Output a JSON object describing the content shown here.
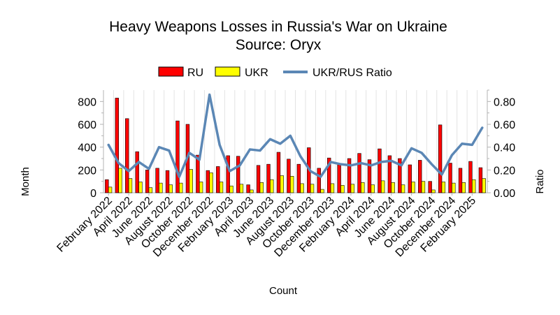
{
  "chart_data": {
    "type": "bar",
    "title": "Heavy Weapons Losses in Russia's War on Ukraine",
    "subtitle": "Source: Oryx",
    "xlabel": "Count",
    "ylabel": "Month",
    "y2label": "Ratio",
    "ylim": [
      0,
      900
    ],
    "y2lim": [
      0,
      0.9
    ],
    "yticks": [
      "0",
      "200",
      "400",
      "600",
      "800"
    ],
    "y2ticks": [
      "0.00",
      "0.20",
      "0.40",
      "0.60",
      "0.80"
    ],
    "legend_position": "top-center",
    "categories": [
      "February 2022",
      "March 2022",
      "April 2022",
      "May 2022",
      "June 2022",
      "July 2022",
      "August 2022",
      "September 2022",
      "October 2022",
      "November 2022",
      "December 2022",
      "January 2023",
      "February 2023",
      "March 2023",
      "April 2023",
      "May 2023",
      "June 2023",
      "July 2023",
      "August 2023",
      "September 2023",
      "October 2023",
      "November 2023",
      "December 2023",
      "January 2024",
      "February 2024",
      "March 2024",
      "April 2024",
      "May 2024",
      "June 2024",
      "July 2024",
      "August 2024",
      "September 2024",
      "October 2024",
      "November 2024",
      "December 2024",
      "January 2025",
      "February 2025",
      "March 2025"
    ],
    "tick_labels": [
      "February 2022",
      "April 2022",
      "June 2022",
      "August 2022",
      "October 2022",
      "December 2022",
      "February 2023",
      "April 2023",
      "June 2023",
      "August 2023",
      "October 2023",
      "December 2023",
      "February 2024",
      "April 2024",
      "June 2024",
      "August 2024",
      "October 2024",
      "December 2024",
      "February 2025"
    ],
    "series": [
      {
        "name": "RU",
        "kind": "bar",
        "axis": "left",
        "color": "#ff0000",
        "values": [
          115,
          830,
          650,
          360,
          200,
          215,
          195,
          630,
          600,
          330,
          195,
          230,
          325,
          320,
          70,
          240,
          250,
          355,
          295,
          250,
          395,
          215,
          305,
          245,
          300,
          345,
          290,
          385,
          325,
          300,
          245,
          285,
          100,
          595,
          260,
          215,
          275,
          220
        ]
      },
      {
        "name": "UKR",
        "kind": "bar",
        "axis": "left",
        "color": "#ffff00",
        "values": [
          50,
          215,
          125,
          95,
          45,
          85,
          70,
          85,
          205,
          95,
          175,
          95,
          60,
          75,
          25,
          90,
          115,
          150,
          145,
          80,
          75,
          30,
          80,
          65,
          75,
          90,
          70,
          105,
          90,
          70,
          95,
          100,
          25,
          95,
          85,
          90,
          115,
          125
        ]
      },
      {
        "name": "UKR/RUS Ratio",
        "kind": "line",
        "axis": "right",
        "color": "#5b87b5",
        "values": [
          0.42,
          0.26,
          0.19,
          0.27,
          0.21,
          0.4,
          0.37,
          0.14,
          0.35,
          0.29,
          0.86,
          0.42,
          0.19,
          0.24,
          0.38,
          0.37,
          0.47,
          0.43,
          0.5,
          0.32,
          0.19,
          0.14,
          0.27,
          0.25,
          0.24,
          0.26,
          0.24,
          0.27,
          0.28,
          0.24,
          0.39,
          0.35,
          0.25,
          0.16,
          0.33,
          0.43,
          0.42,
          0.57
        ]
      }
    ]
  }
}
